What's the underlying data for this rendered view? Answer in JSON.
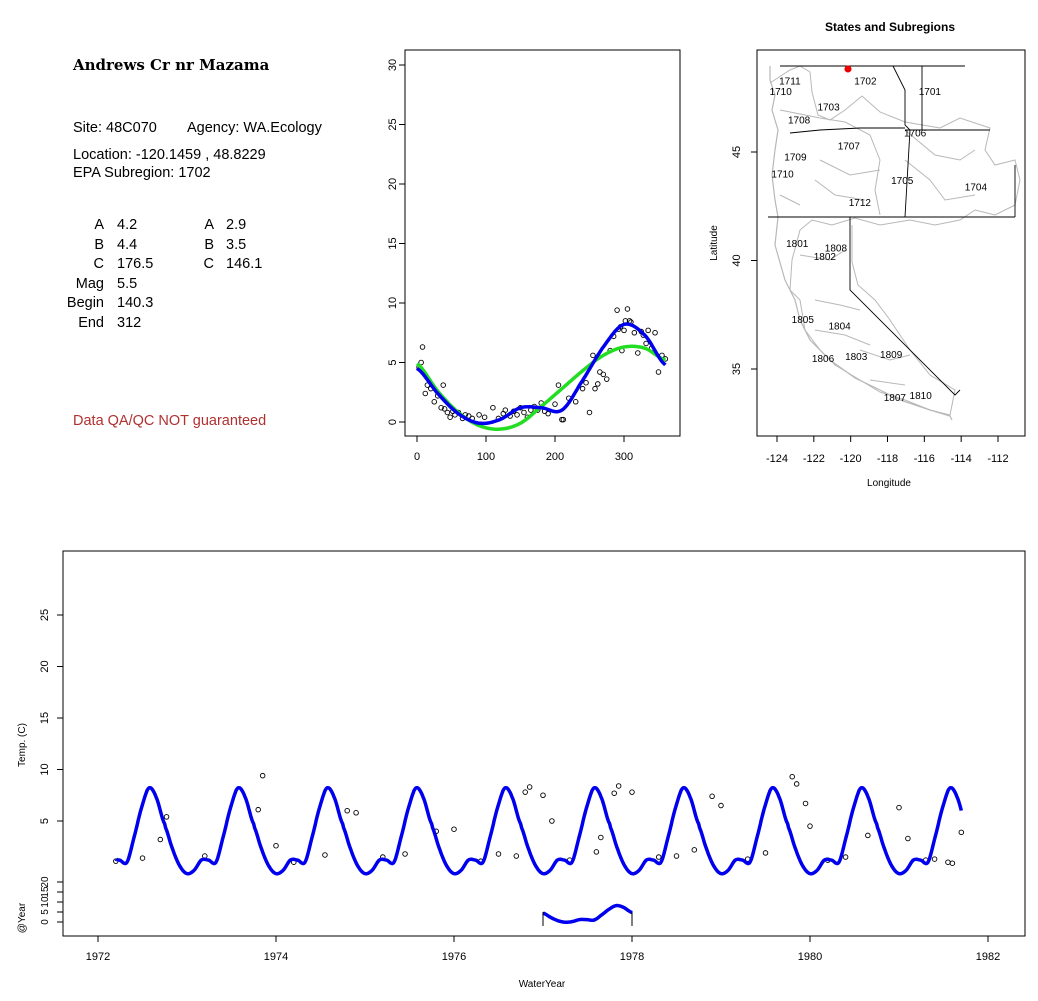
{
  "site_panel": {
    "title": "Andrews Cr nr Mazama",
    "site_line": "Site: 48C070",
    "agency_line": "Agency: WA.Ecology",
    "location_line": "Location: -120.1459 , 48.8229",
    "subregion_line": "EPA Subregion: 1702",
    "params_left": [
      {
        "label": "A",
        "value": "4.2"
      },
      {
        "label": "B",
        "value": "4.4"
      },
      {
        "label": "C",
        "value": "176.5"
      },
      {
        "label": "Mag",
        "value": "5.5"
      },
      {
        "label": "Begin",
        "value": "140.3"
      },
      {
        "label": "End",
        "value": "312"
      }
    ],
    "params_right": [
      {
        "label": "A",
        "value": "2.9"
      },
      {
        "label": "B",
        "value": "3.5"
      },
      {
        "label": "C",
        "value": "146.1"
      }
    ],
    "qa_note": "Data QA/QC NOT guaranteed"
  },
  "colors": {
    "fit_blue": "#0000ee",
    "fit_green": "#22dd22",
    "site_marker": "#ee0000",
    "qa_text": "#b03030",
    "region_lines": "#b8b8b8"
  },
  "chart_data": [
    {
      "type": "scatter",
      "title": "",
      "xlabel": "",
      "ylabel": "",
      "xlim": [
        0,
        366
      ],
      "ylim": [
        0,
        30
      ],
      "x_ticks": [
        0,
        100,
        200,
        300
      ],
      "y_ticks": [
        0,
        5,
        10,
        15,
        20,
        25,
        30
      ],
      "points": [
        [
          3,
          4.6
        ],
        [
          6,
          5.0
        ],
        [
          8,
          6.3
        ],
        [
          12,
          2.4
        ],
        [
          15,
          3.1
        ],
        [
          20,
          2.8
        ],
        [
          25,
          1.7
        ],
        [
          30,
          2.2
        ],
        [
          35,
          1.2
        ],
        [
          38,
          3.1
        ],
        [
          40,
          1.1
        ],
        [
          44,
          0.8
        ],
        [
          48,
          0.4
        ],
        [
          52,
          0.9
        ],
        [
          55,
          0.6
        ],
        [
          60,
          0.8
        ],
        [
          66,
          0.3
        ],
        [
          70,
          0.6
        ],
        [
          75,
          0.5
        ],
        [
          80,
          0.3
        ],
        [
          90,
          0.6
        ],
        [
          98,
          0.4
        ],
        [
          110,
          1.2
        ],
        [
          118,
          0.3
        ],
        [
          125,
          0.7
        ],
        [
          128,
          1.0
        ],
        [
          135,
          0.5
        ],
        [
          140,
          0.9
        ],
        [
          145,
          0.6
        ],
        [
          150,
          1.2
        ],
        [
          155,
          0.8
        ],
        [
          160,
          0.4
        ],
        [
          165,
          1.0
        ],
        [
          170,
          1.3
        ],
        [
          175,
          1.0
        ],
        [
          180,
          1.6
        ],
        [
          185,
          0.9
        ],
        [
          190,
          0.7
        ],
        [
          200,
          1.5
        ],
        [
          205,
          3.1
        ],
        [
          210,
          0.2
        ],
        [
          212,
          0.2
        ],
        [
          220,
          2.0
        ],
        [
          230,
          1.7
        ],
        [
          240,
          2.8
        ],
        [
          245,
          3.3
        ],
        [
          250,
          0.8
        ],
        [
          255,
          5.6
        ],
        [
          258,
          2.8
        ],
        [
          262,
          3.2
        ],
        [
          265,
          4.2
        ],
        [
          270,
          4.0
        ],
        [
          275,
          3.6
        ],
        [
          280,
          6.0
        ],
        [
          285,
          7.2
        ],
        [
          290,
          9.4
        ],
        [
          292,
          7.8
        ],
        [
          295,
          8.0
        ],
        [
          297,
          6.0
        ],
        [
          300,
          7.7
        ],
        [
          302,
          8.5
        ],
        [
          305,
          9.5
        ],
        [
          308,
          8.5
        ],
        [
          310,
          8.4
        ],
        [
          315,
          7.5
        ],
        [
          320,
          5.8
        ],
        [
          325,
          7.6
        ],
        [
          328,
          7.3
        ],
        [
          332,
          6.6
        ],
        [
          335,
          7.7
        ],
        [
          340,
          6.2
        ],
        [
          345,
          7.5
        ],
        [
          350,
          4.2
        ],
        [
          355,
          5.6
        ],
        [
          360,
          5.3
        ]
      ],
      "series": [
        {
          "values_x": [
            0,
            30,
            60,
            90,
            120,
            150,
            180,
            210,
            240,
            270,
            300,
            330,
            360
          ],
          "values_y": [
            4.5,
            2.4,
            0.7,
            -0.1,
            0.2,
            1.2,
            1.2,
            1.0,
            3.5,
            6.3,
            8.2,
            7.3,
            4.8
          ]
        },
        {
          "values_x": [
            0,
            30,
            60,
            90,
            120,
            150,
            180,
            210,
            240,
            270,
            300,
            330,
            360
          ],
          "values_y": [
            4.9,
            2.6,
            0.8,
            -0.3,
            -0.6,
            -0.1,
            1.3,
            2.8,
            4.3,
            5.6,
            6.3,
            6.2,
            5.2
          ]
        }
      ]
    },
    {
      "type": "map",
      "title": "States and Subregions",
      "xlabel": "Longitude",
      "ylabel": "Latitude",
      "xlim": [
        -125,
        -110.5
      ],
      "ylim": [
        32.2,
        49.8
      ],
      "x_ticks": [
        -124,
        -122,
        -120,
        -118,
        -116,
        -114,
        -112
      ],
      "y_ticks": [
        35,
        40,
        45
      ],
      "regions": [
        {
          "label": "1711",
          "lon": -123.3,
          "lat": 48.3
        },
        {
          "label": "1710",
          "lon": -123.8,
          "lat": 47.8
        },
        {
          "label": "1702",
          "lon": -119.2,
          "lat": 48.3
        },
        {
          "label": "1701",
          "lon": -115.7,
          "lat": 47.8
        },
        {
          "label": "1703",
          "lon": -121.2,
          "lat": 47.1
        },
        {
          "label": "1708",
          "lon": -122.8,
          "lat": 46.5
        },
        {
          "label": "1706",
          "lon": -116.5,
          "lat": 45.9
        },
        {
          "label": "1707",
          "lon": -120.1,
          "lat": 45.3
        },
        {
          "label": "1709",
          "lon": -123.0,
          "lat": 44.8
        },
        {
          "label": "1710",
          "lon": -123.7,
          "lat": 44.0
        },
        {
          "label": "1705",
          "lon": -117.2,
          "lat": 43.7
        },
        {
          "label": "1704",
          "lon": -113.2,
          "lat": 43.4
        },
        {
          "label": "1712",
          "lon": -119.5,
          "lat": 42.7
        },
        {
          "label": "1801",
          "lon": -122.9,
          "lat": 40.8
        },
        {
          "label": "1808",
          "lon": -120.8,
          "lat": 40.6
        },
        {
          "label": "1802",
          "lon": -121.4,
          "lat": 40.2
        },
        {
          "label": "1805",
          "lon": -122.6,
          "lat": 37.3
        },
        {
          "label": "1804",
          "lon": -120.6,
          "lat": 37.0
        },
        {
          "label": "1806",
          "lon": -121.5,
          "lat": 35.5
        },
        {
          "label": "1803",
          "lon": -119.7,
          "lat": 35.6
        },
        {
          "label": "1809",
          "lon": -117.8,
          "lat": 35.7
        },
        {
          "label": "1810",
          "lon": -116.2,
          "lat": 33.8
        },
        {
          "label": "1807",
          "lon": -117.6,
          "lat": 33.7
        }
      ],
      "site": {
        "lon": -120.1459,
        "lat": 48.8229
      }
    },
    {
      "type": "line",
      "title": "",
      "xlabel": "WaterYear",
      "ylabel": "Temp. (C)",
      "ylabel2": "@Year",
      "xlim": [
        1971.7,
        1982.4
      ],
      "x_ticks": [
        1972,
        1974,
        1976,
        1978,
        1980,
        1982
      ],
      "y_ticks": [
        5,
        10,
        15,
        20,
        25
      ],
      "y2_ticks": [
        0,
        5,
        10,
        15,
        20
      ],
      "series_range": [
        1972.2,
        1981.7
      ],
      "annual_cycle_doy": [
        0,
        30,
        60,
        90,
        120,
        150,
        180,
        210,
        240,
        270,
        300,
        330,
        365
      ],
      "annual_cycle_temp": [
        4.5,
        2.4,
        0.7,
        -0.1,
        0.2,
        1.2,
        1.2,
        1.0,
        3.5,
        6.3,
        8.2,
        7.3,
        4.7
      ],
      "obs": [
        [
          1972.2,
          1.1
        ],
        [
          1972.5,
          1.4
        ],
        [
          1972.7,
          3.2
        ],
        [
          1972.77,
          5.4
        ],
        [
          1973.2,
          1.6
        ],
        [
          1973.85,
          9.4
        ],
        [
          1973.8,
          6.1
        ],
        [
          1974.0,
          2.6
        ],
        [
          1974.2,
          1.0
        ],
        [
          1974.55,
          1.7
        ],
        [
          1974.8,
          6.0
        ],
        [
          1974.9,
          5.8
        ],
        [
          1975.2,
          1.5
        ],
        [
          1975.45,
          1.8
        ],
        [
          1975.8,
          4.0
        ],
        [
          1976.0,
          4.2
        ],
        [
          1976.3,
          1.1
        ],
        [
          1976.5,
          1.8
        ],
        [
          1976.7,
          1.6
        ],
        [
          1976.8,
          7.8
        ],
        [
          1976.85,
          8.3
        ],
        [
          1977.0,
          7.5
        ],
        [
          1977.1,
          5.0
        ],
        [
          1977.3,
          1.2
        ],
        [
          1977.6,
          2.0
        ],
        [
          1977.65,
          3.4
        ],
        [
          1977.8,
          7.7
        ],
        [
          1977.85,
          8.4
        ],
        [
          1978.0,
          7.8
        ],
        [
          1978.3,
          1.5
        ],
        [
          1978.5,
          1.6
        ],
        [
          1978.7,
          2.2
        ],
        [
          1978.9,
          7.4
        ],
        [
          1979.0,
          6.5
        ],
        [
          1979.3,
          1.3
        ],
        [
          1979.5,
          1.9
        ],
        [
          1979.8,
          9.3
        ],
        [
          1979.85,
          8.6
        ],
        [
          1979.95,
          6.7
        ],
        [
          1980.0,
          4.5
        ],
        [
          1980.2,
          1.2
        ],
        [
          1980.4,
          1.5
        ],
        [
          1980.65,
          3.6
        ],
        [
          1981.0,
          6.3
        ],
        [
          1981.1,
          3.3
        ],
        [
          1981.3,
          1.2
        ],
        [
          1981.4,
          1.3
        ],
        [
          1981.55,
          1.0
        ],
        [
          1981.6,
          0.9
        ],
        [
          1981.7,
          3.9
        ]
      ],
      "year_marker": {
        "start": 1977.0,
        "end": 1978.0
      }
    }
  ]
}
